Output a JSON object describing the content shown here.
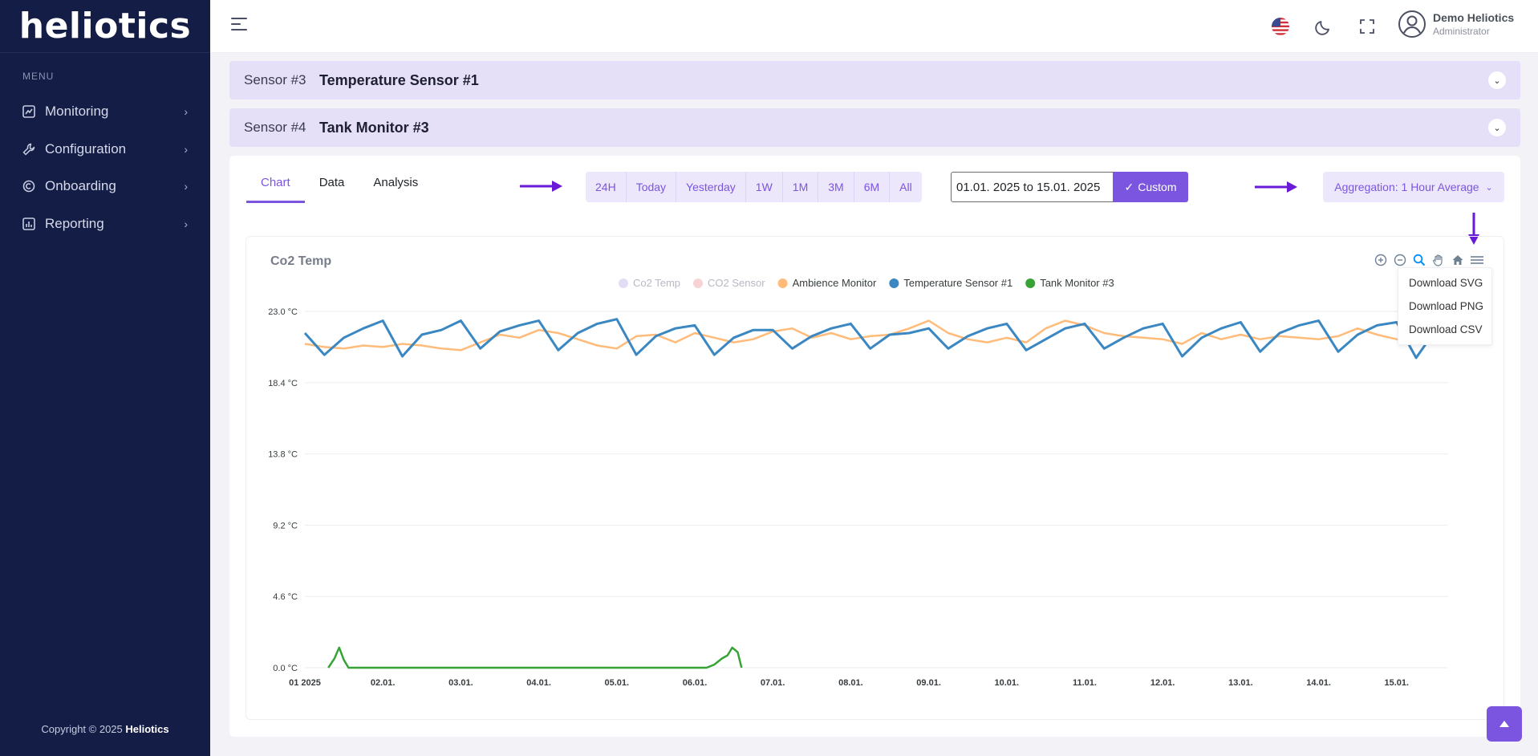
{
  "app": {
    "logo": "heliotics"
  },
  "sidebar": {
    "menu_title": "MENU",
    "items": [
      {
        "label": "Monitoring",
        "icon": "chart-icon"
      },
      {
        "label": "Configuration",
        "icon": "wrench-icon"
      },
      {
        "label": "Onboarding",
        "icon": "onboarding-icon"
      },
      {
        "label": "Reporting",
        "icon": "report-icon"
      }
    ],
    "copyright_prefix": "Copyright © 2025",
    "copyright_brand": "Heliotics"
  },
  "topbar": {
    "user_name": "Demo Heliotics",
    "user_role": "Administrator"
  },
  "sensors": [
    {
      "number": "Sensor #3",
      "name": "Temperature Sensor #1"
    },
    {
      "number": "Sensor #4",
      "name": "Tank Monitor #3"
    }
  ],
  "tabs": [
    "Chart",
    "Data",
    "Analysis"
  ],
  "ranges": [
    "24H",
    "Today",
    "Yesterday",
    "1W",
    "1M",
    "3M",
    "6M",
    "All"
  ],
  "date_range": {
    "value": "01.01. 2025 to 15.01. 2025"
  },
  "custom_label": "Custom",
  "aggregation_label": "Aggregation: 1 Hour Average",
  "download_menu": [
    "Download SVG",
    "Download PNG",
    "Download CSV"
  ],
  "chart_data": {
    "type": "line",
    "title": "Co2 Temp",
    "legend_placement": "top-center",
    "grid": true,
    "ylim": [
      0.0,
      23.0
    ],
    "y_ticks": [
      "23.0 °C",
      "18.4 °C",
      "13.8 °C",
      "9.2 °C",
      "4.6 °C",
      "0.0 °C"
    ],
    "x_ticks": [
      "01 2025",
      "02.01.",
      "03.01.",
      "04.01.",
      "05.01.",
      "06.01.",
      "07.01.",
      "08.01.",
      "09.01.",
      "10.01.",
      "11.01.",
      "12.01.",
      "13.01.",
      "14.01.",
      "15.01."
    ],
    "series": [
      {
        "name": "Co2 Temp",
        "color": "#e3dcf5",
        "hidden": true,
        "points": []
      },
      {
        "name": "CO2 Sensor",
        "color": "#f8d3d6",
        "hidden": true,
        "points": []
      },
      {
        "name": "Ambience Monitor",
        "color": "#ffbb7a",
        "points": [
          [
            0.0,
            20.9
          ],
          [
            0.25,
            20.7
          ],
          [
            0.5,
            20.6
          ],
          [
            0.75,
            20.8
          ],
          [
            1.0,
            20.7
          ],
          [
            1.25,
            20.9
          ],
          [
            1.5,
            20.8
          ],
          [
            1.75,
            20.6
          ],
          [
            2.0,
            20.5
          ],
          [
            2.25,
            21.0
          ],
          [
            2.5,
            21.5
          ],
          [
            2.75,
            21.3
          ],
          [
            3.0,
            21.8
          ],
          [
            3.25,
            21.6
          ],
          [
            3.5,
            21.2
          ],
          [
            3.75,
            20.8
          ],
          [
            4.0,
            20.6
          ],
          [
            4.25,
            21.4
          ],
          [
            4.5,
            21.5
          ],
          [
            4.75,
            21.0
          ],
          [
            5.0,
            21.6
          ],
          [
            5.25,
            21.3
          ],
          [
            5.5,
            21.0
          ],
          [
            5.75,
            21.2
          ],
          [
            6.0,
            21.7
          ],
          [
            6.25,
            21.9
          ],
          [
            6.5,
            21.3
          ],
          [
            6.75,
            21.6
          ],
          [
            7.0,
            21.2
          ],
          [
            7.25,
            21.4
          ],
          [
            7.5,
            21.5
          ],
          [
            7.75,
            21.9
          ],
          [
            8.0,
            22.4
          ],
          [
            8.25,
            21.6
          ],
          [
            8.5,
            21.2
          ],
          [
            8.75,
            21.0
          ],
          [
            9.0,
            21.3
          ],
          [
            9.25,
            21.0
          ],
          [
            9.5,
            21.9
          ],
          [
            9.75,
            22.4
          ],
          [
            10.0,
            22.1
          ],
          [
            10.25,
            21.6
          ],
          [
            10.5,
            21.4
          ],
          [
            10.75,
            21.3
          ],
          [
            11.0,
            21.2
          ],
          [
            11.25,
            20.9
          ],
          [
            11.5,
            21.6
          ],
          [
            11.75,
            21.2
          ],
          [
            12.0,
            21.5
          ],
          [
            12.25,
            21.2
          ],
          [
            12.5,
            21.4
          ],
          [
            12.75,
            21.3
          ],
          [
            13.0,
            21.2
          ],
          [
            13.25,
            21.4
          ],
          [
            13.5,
            21.9
          ],
          [
            13.75,
            21.5
          ],
          [
            14.0,
            21.2
          ],
          [
            14.25,
            20.9
          ],
          [
            14.5,
            21.0
          ],
          [
            14.75,
            21.6
          ],
          [
            14.9,
            22.0
          ]
        ]
      },
      {
        "name": "Temperature Sensor #1",
        "color": "#3a87c2",
        "points": [
          [
            0.0,
            21.6
          ],
          [
            0.25,
            20.2
          ],
          [
            0.5,
            21.3
          ],
          [
            0.75,
            21.9
          ],
          [
            1.0,
            22.4
          ],
          [
            1.25,
            20.1
          ],
          [
            1.5,
            21.5
          ],
          [
            1.75,
            21.8
          ],
          [
            2.0,
            22.4
          ],
          [
            2.25,
            20.6
          ],
          [
            2.5,
            21.7
          ],
          [
            2.75,
            22.1
          ],
          [
            3.0,
            22.4
          ],
          [
            3.25,
            20.5
          ],
          [
            3.5,
            21.6
          ],
          [
            3.75,
            22.2
          ],
          [
            4.0,
            22.5
          ],
          [
            4.25,
            20.2
          ],
          [
            4.5,
            21.4
          ],
          [
            4.75,
            21.9
          ],
          [
            5.0,
            22.1
          ],
          [
            5.25,
            20.2
          ],
          [
            5.5,
            21.3
          ],
          [
            5.75,
            21.8
          ],
          [
            6.0,
            21.8
          ],
          [
            6.25,
            20.6
          ],
          [
            6.5,
            21.4
          ],
          [
            6.75,
            21.9
          ],
          [
            7.0,
            22.2
          ],
          [
            7.25,
            20.6
          ],
          [
            7.5,
            21.5
          ],
          [
            7.75,
            21.6
          ],
          [
            8.0,
            21.9
          ],
          [
            8.25,
            20.6
          ],
          [
            8.5,
            21.4
          ],
          [
            8.75,
            21.9
          ],
          [
            9.0,
            22.2
          ],
          [
            9.25,
            20.5
          ],
          [
            9.5,
            21.2
          ],
          [
            9.75,
            21.9
          ],
          [
            10.0,
            22.2
          ],
          [
            10.25,
            20.6
          ],
          [
            10.5,
            21.3
          ],
          [
            10.75,
            21.9
          ],
          [
            11.0,
            22.2
          ],
          [
            11.25,
            20.1
          ],
          [
            11.5,
            21.3
          ],
          [
            11.75,
            21.9
          ],
          [
            12.0,
            22.3
          ],
          [
            12.25,
            20.4
          ],
          [
            12.5,
            21.6
          ],
          [
            12.75,
            22.1
          ],
          [
            13.0,
            22.4
          ],
          [
            13.25,
            20.4
          ],
          [
            13.5,
            21.5
          ],
          [
            13.75,
            22.1
          ],
          [
            14.0,
            22.3
          ],
          [
            14.25,
            20.0
          ],
          [
            14.5,
            21.8
          ],
          [
            14.75,
            22.6
          ],
          [
            14.9,
            22.8
          ]
        ]
      },
      {
        "name": "Tank Monitor #3",
        "color": "#37a336",
        "points": [
          [
            0.3,
            0.0
          ],
          [
            0.38,
            0.6
          ],
          [
            0.44,
            1.3
          ],
          [
            0.5,
            0.5
          ],
          [
            0.56,
            0.0
          ],
          [
            5.15,
            0.0
          ],
          [
            5.25,
            0.2
          ],
          [
            5.35,
            0.6
          ],
          [
            5.42,
            0.8
          ],
          [
            5.48,
            1.3
          ],
          [
            5.55,
            1.0
          ],
          [
            5.6,
            0.0
          ]
        ]
      }
    ]
  }
}
